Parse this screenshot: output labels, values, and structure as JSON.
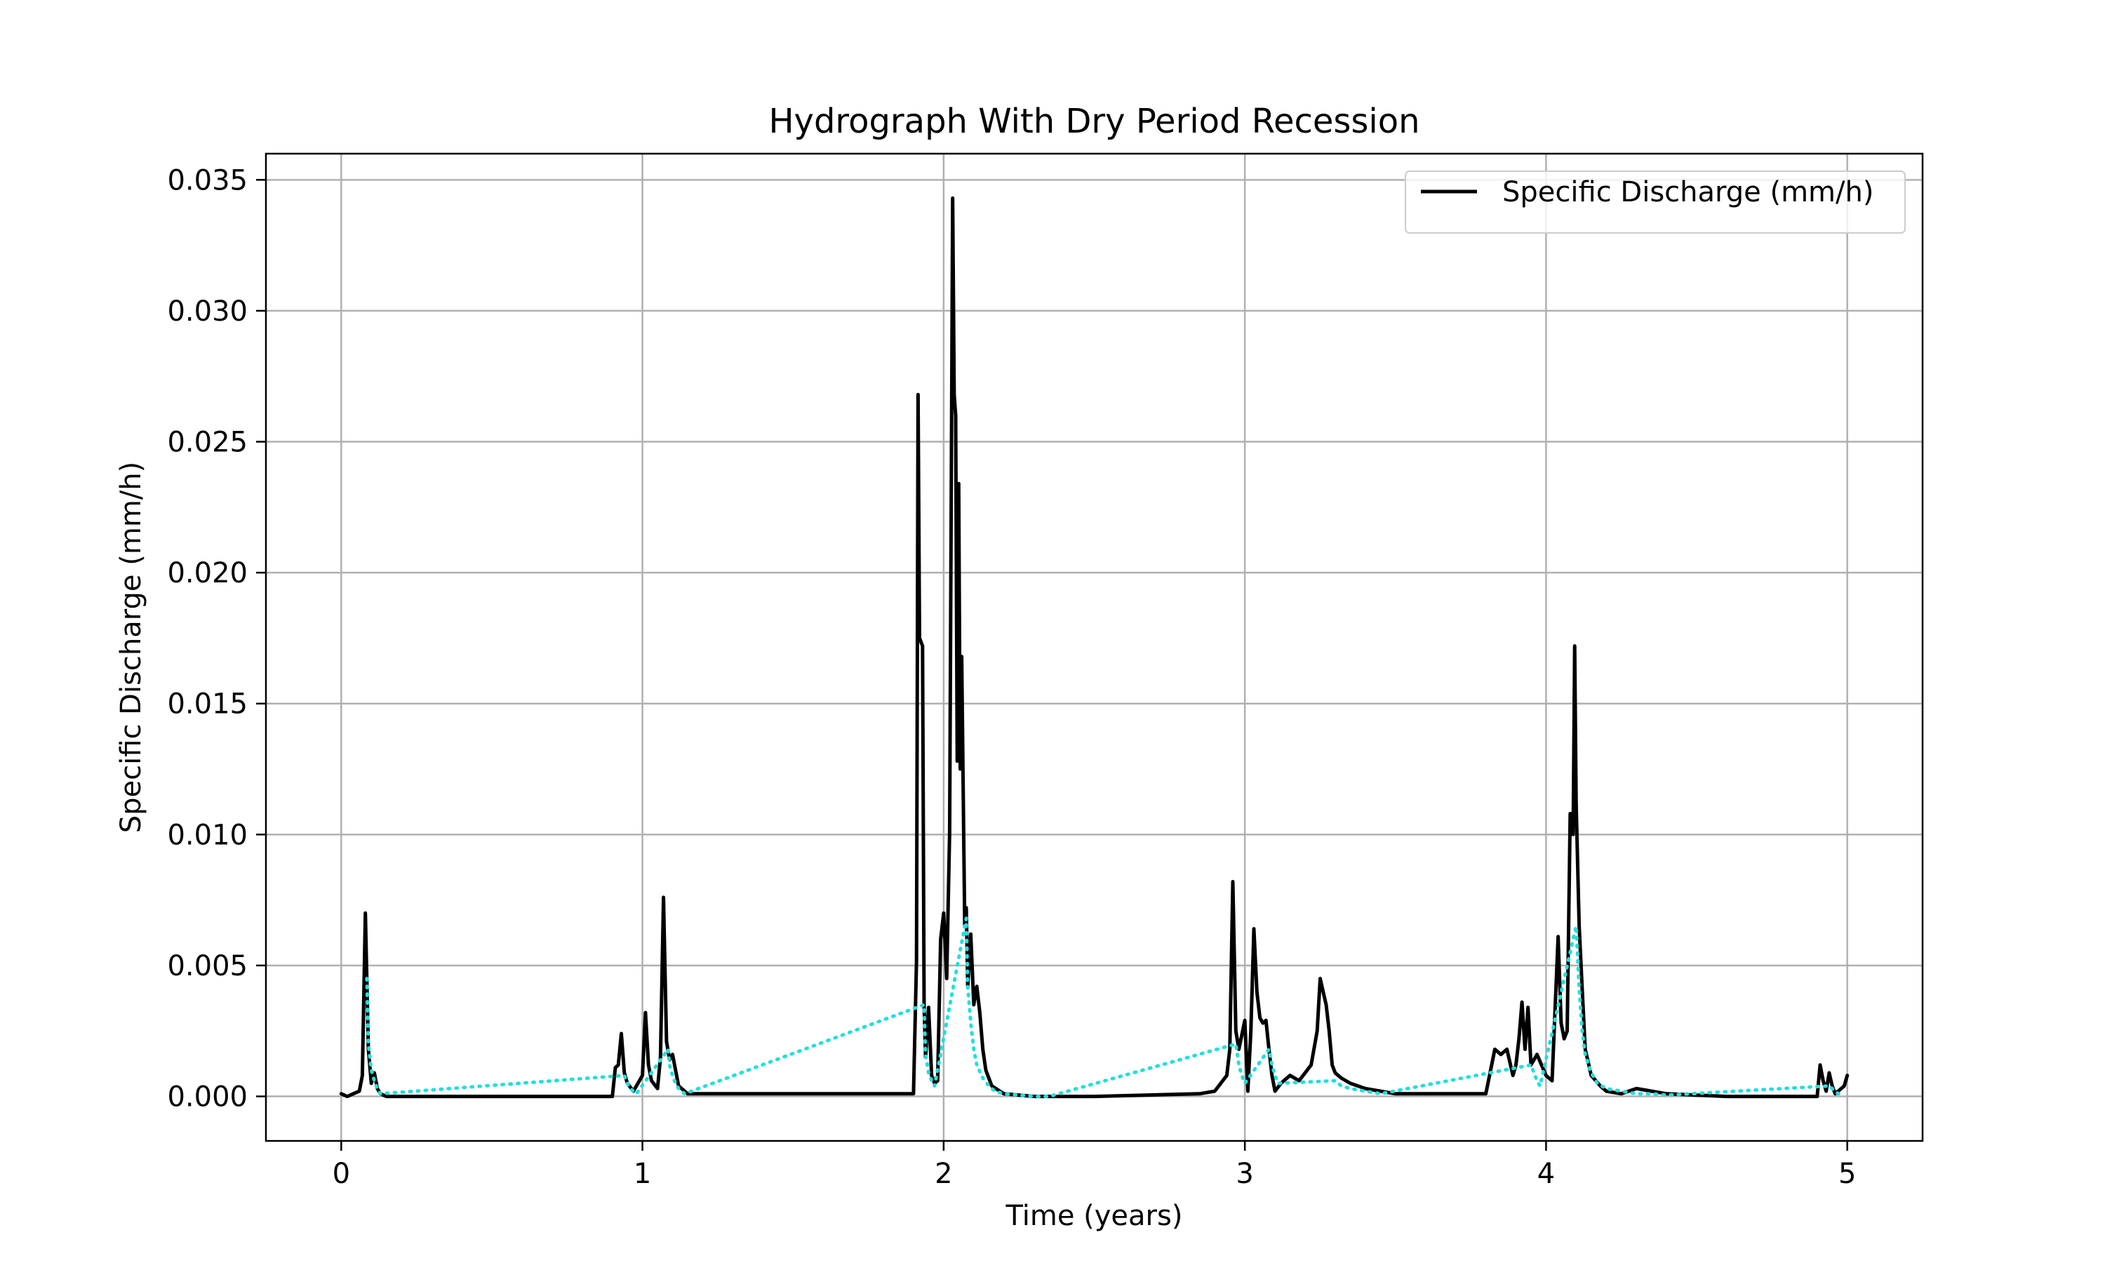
{
  "chart_data": {
    "type": "line",
    "title": "Hydrograph With Dry Period Recession",
    "xlabel": "Time (years)",
    "ylabel": "Specific Discharge (mm/h)",
    "xlim": [
      -0.25,
      5.25
    ],
    "ylim": [
      -0.0017,
      0.036
    ],
    "xticks": [
      0,
      1,
      2,
      3,
      4,
      5
    ],
    "xtick_labels": [
      "0",
      "1",
      "2",
      "3",
      "4",
      "5"
    ],
    "yticks": [
      0.0,
      0.005,
      0.01,
      0.015,
      0.02,
      0.025,
      0.03,
      0.035
    ],
    "ytick_labels": [
      "0.000",
      "0.005",
      "0.010",
      "0.015",
      "0.020",
      "0.025",
      "0.030",
      "0.035"
    ],
    "grid": true,
    "legend": {
      "placement": "upper right",
      "entries": [
        "Specific Discharge (mm/h)"
      ]
    },
    "series": [
      {
        "name": "Specific Discharge (mm/h)",
        "color": "#000000",
        "style": "solid",
        "x": [
          0.0,
          0.02,
          0.04,
          0.06,
          0.07,
          0.08,
          0.085,
          0.09,
          0.1,
          0.11,
          0.12,
          0.13,
          0.15,
          0.5,
          0.9,
          0.91,
          0.92,
          0.93,
          0.94,
          0.95,
          0.97,
          1.0,
          1.01,
          1.02,
          1.03,
          1.05,
          1.06,
          1.07,
          1.08,
          1.09,
          1.1,
          1.12,
          1.15,
          1.5,
          1.9,
          1.91,
          1.915,
          1.92,
          1.93,
          1.935,
          1.94,
          1.95,
          1.96,
          1.97,
          1.98,
          1.99,
          2.0,
          2.01,
          2.02,
          2.03,
          2.035,
          2.04,
          2.045,
          2.05,
          2.055,
          2.06,
          2.07,
          2.075,
          2.08,
          2.09,
          2.1,
          2.11,
          2.12,
          2.13,
          2.14,
          2.16,
          2.2,
          2.3,
          2.5,
          2.85,
          2.9,
          2.92,
          2.94,
          2.95,
          2.96,
          2.97,
          2.98,
          3.0,
          3.01,
          3.02,
          3.03,
          3.04,
          3.05,
          3.06,
          3.07,
          3.08,
          3.09,
          3.1,
          3.12,
          3.15,
          3.18,
          3.2,
          3.22,
          3.24,
          3.25,
          3.26,
          3.27,
          3.28,
          3.29,
          3.3,
          3.32,
          3.35,
          3.4,
          3.45,
          3.5,
          3.6,
          3.7,
          3.8,
          3.83,
          3.85,
          3.87,
          3.89,
          3.9,
          3.91,
          3.92,
          3.93,
          3.94,
          3.95,
          3.97,
          4.0,
          4.02,
          4.04,
          4.05,
          4.06,
          4.07,
          4.08,
          4.09,
          4.095,
          4.1,
          4.11,
          4.12,
          4.13,
          4.15,
          4.18,
          4.2,
          4.25,
          4.3,
          4.35,
          4.4,
          4.6,
          4.9,
          4.91,
          4.92,
          4.93,
          4.94,
          4.95,
          4.96,
          4.97,
          4.98,
          4.99,
          5.0
        ],
        "y": [
          0.0001,
          0.0,
          0.0001,
          0.0002,
          0.0008,
          0.007,
          0.0045,
          0.0018,
          0.0005,
          0.0009,
          0.0003,
          0.0001,
          0.0,
          0.0,
          0.0,
          0.0011,
          0.0012,
          0.0024,
          0.0009,
          0.0005,
          0.0002,
          0.0008,
          0.0032,
          0.0012,
          0.0006,
          0.0003,
          0.0015,
          0.0076,
          0.0021,
          0.0014,
          0.0016,
          0.0004,
          0.0001,
          0.0001,
          0.0001,
          0.0052,
          0.0268,
          0.0175,
          0.0172,
          0.0035,
          0.0015,
          0.0034,
          0.0008,
          0.0005,
          0.0006,
          0.006,
          0.007,
          0.0045,
          0.0101,
          0.0343,
          0.0268,
          0.026,
          0.0128,
          0.0234,
          0.0125,
          0.0168,
          0.0065,
          0.0072,
          0.0042,
          0.0062,
          0.0035,
          0.0042,
          0.0032,
          0.0018,
          0.001,
          0.0004,
          0.0001,
          0.0,
          0.0,
          0.0001,
          0.0002,
          0.0005,
          0.0008,
          0.0018,
          0.0082,
          0.0025,
          0.0018,
          0.0029,
          0.0002,
          0.0025,
          0.0064,
          0.004,
          0.003,
          0.0028,
          0.0029,
          0.0018,
          0.0008,
          0.0002,
          0.0005,
          0.0008,
          0.0006,
          0.0009,
          0.0012,
          0.0025,
          0.0045,
          0.004,
          0.0035,
          0.0025,
          0.0012,
          0.0009,
          0.0007,
          0.0005,
          0.0003,
          0.0002,
          0.0001,
          0.0001,
          0.0001,
          0.0001,
          0.0018,
          0.0016,
          0.0018,
          0.0008,
          0.0012,
          0.0022,
          0.0036,
          0.0018,
          0.0034,
          0.0012,
          0.0016,
          0.0008,
          0.0006,
          0.0061,
          0.0028,
          0.0022,
          0.0025,
          0.0108,
          0.01,
          0.0172,
          0.0112,
          0.0065,
          0.0041,
          0.0018,
          0.0008,
          0.0004,
          0.0002,
          0.0001,
          0.0003,
          0.0002,
          0.0001,
          0.0,
          0.0,
          0.0012,
          0.0006,
          0.0002,
          0.0009,
          0.0004,
          0.0001,
          0.0002,
          0.0003,
          0.0004,
          0.0008
        ]
      },
      {
        "name": "",
        "color": "#22dede",
        "style": "dotted",
        "x": [
          0.085,
          0.09,
          0.1,
          0.11,
          0.12,
          0.13,
          0.94,
          0.95,
          0.96,
          0.97,
          0.98,
          1.085,
          1.09,
          1.1,
          1.11,
          1.12,
          1.13,
          1.14,
          1.935,
          1.94,
          1.95,
          1.96,
          1.97,
          2.075,
          2.08,
          2.09,
          2.1,
          2.11,
          2.13,
          2.15,
          2.17,
          2.2,
          2.25,
          2.3,
          2.35,
          2.97,
          2.98,
          2.99,
          3.0,
          3.08,
          3.09,
          3.1,
          3.11,
          3.3,
          3.32,
          3.35,
          3.4,
          3.45,
          3.95,
          3.96,
          3.97,
          3.98,
          4.1,
          4.11,
          4.12,
          4.13,
          4.15,
          4.17,
          4.2,
          4.25,
          4.3,
          4.35,
          4.4,
          4.94,
          4.95,
          4.96,
          4.97,
          4.98
        ],
        "y": [
          0.0045,
          0.002,
          0.001,
          0.0006,
          0.0003,
          0.0001,
          0.0008,
          0.0005,
          0.0003,
          0.0002,
          0.0001,
          0.0018,
          0.0012,
          0.0008,
          0.0005,
          0.0003,
          0.0002,
          0.0001,
          0.0035,
          0.0016,
          0.0009,
          0.0006,
          0.0004,
          0.0068,
          0.0042,
          0.0028,
          0.0018,
          0.0012,
          0.0007,
          0.0004,
          0.0002,
          0.0001,
          5e-05,
          0.0,
          0.0,
          0.002,
          0.0012,
          0.0008,
          0.0005,
          0.0018,
          0.0012,
          0.0008,
          0.0005,
          0.0006,
          0.0004,
          0.0003,
          0.0002,
          0.0001,
          0.0012,
          0.0009,
          0.0006,
          0.0004,
          0.0065,
          0.0041,
          0.0025,
          0.0016,
          0.0009,
          0.0005,
          0.0003,
          0.0002,
          0.0001,
          0.0001,
          5e-05,
          0.0004,
          0.0003,
          0.0002,
          0.0001,
          0.0001
        ]
      }
    ]
  }
}
